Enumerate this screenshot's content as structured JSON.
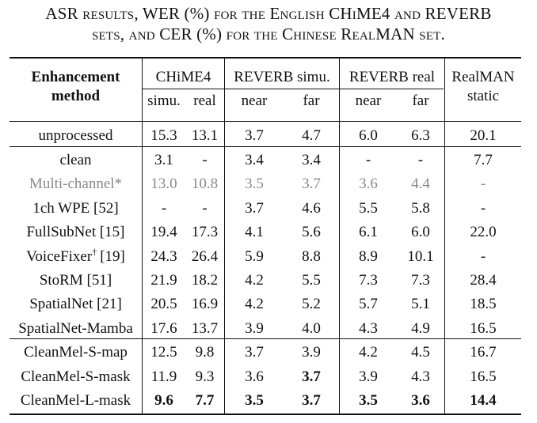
{
  "caption": {
    "line1": "ASR results, WER (%) for the English CHiME4 and REVERB",
    "line2": "sets, and CER (%) for the Chinese RealMAN set."
  },
  "header": {
    "method_line1": "Enhancement",
    "method_line2": "method",
    "groups": [
      "CHiME4",
      "REVERB simu.",
      "REVERB real",
      "RealMAN"
    ],
    "subcols": [
      "simu.",
      "real",
      "near",
      "far",
      "near",
      "far",
      "static"
    ]
  },
  "rows": [
    {
      "method": "unprocessed",
      "values": [
        "15.3",
        "13.1",
        "3.7",
        "4.7",
        "6.0",
        "6.3",
        "20.1"
      ]
    },
    {
      "method": "clean",
      "values": [
        "3.1",
        "-",
        "3.4",
        "3.4",
        "-",
        "-",
        "7.7"
      ]
    },
    {
      "method": "Multi-channel*",
      "values": [
        "13.0",
        "10.8",
        "3.5",
        "3.7",
        "3.6",
        "4.4",
        "-"
      ]
    },
    {
      "method": "1ch WPE [52]",
      "values": [
        "-",
        "-",
        "3.7",
        "4.6",
        "5.5",
        "5.8",
        "-"
      ]
    },
    {
      "method": "FullSubNet [15]",
      "values": [
        "19.4",
        "17.3",
        "4.1",
        "5.6",
        "6.1",
        "6.0",
        "22.0"
      ]
    },
    {
      "method": "VoiceFixer",
      "method_sup": "†",
      "method_ref": "[19]",
      "values": [
        "24.3",
        "26.4",
        "5.9",
        "8.8",
        "8.9",
        "10.1",
        "-"
      ]
    },
    {
      "method": "StoRM [51]",
      "values": [
        "21.9",
        "18.2",
        "4.2",
        "5.5",
        "7.3",
        "7.3",
        "28.4"
      ]
    },
    {
      "method": "SpatialNet [21]",
      "values": [
        "20.5",
        "16.9",
        "4.2",
        "5.2",
        "5.7",
        "5.1",
        "18.5"
      ]
    },
    {
      "method": "SpatialNet-Mamba",
      "values": [
        "17.6",
        "13.7",
        "3.9",
        "4.0",
        "4.3",
        "4.9",
        "16.5"
      ]
    },
    {
      "method": "CleanMel-S-map",
      "values": [
        "12.5",
        "9.8",
        "3.7",
        "3.9",
        "4.2",
        "4.5",
        "16.7"
      ]
    },
    {
      "method": "CleanMel-S-mask",
      "values": [
        "11.9",
        "9.3",
        "3.6",
        "3.7",
        "3.9",
        "4.3",
        "16.5"
      ]
    },
    {
      "method": "CleanMel-L-mask",
      "values": [
        "9.6",
        "7.7",
        "3.5",
        "3.7",
        "3.5",
        "3.6",
        "14.4"
      ]
    }
  ]
}
